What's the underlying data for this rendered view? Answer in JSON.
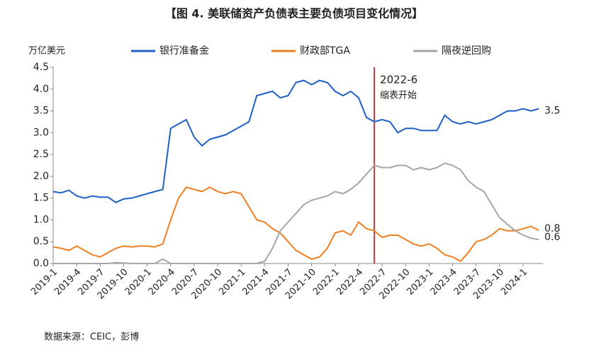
{
  "chart_data": {
    "type": "line",
    "title": "【图 4. 美联储资产负债表主要负债项目变化情况】",
    "y_label": "万亿美元",
    "source": "数据来源：CEIC，彭博",
    "categories": [
      "2019-1",
      null,
      null,
      "2019-4",
      null,
      null,
      "2019-7",
      null,
      null,
      "2019-10",
      null,
      null,
      "2020-1",
      null,
      null,
      "2020-4",
      null,
      null,
      "2020-7",
      null,
      null,
      "2020-10",
      null,
      null,
      "2021-1",
      null,
      null,
      "2021-4",
      null,
      null,
      "2021-7",
      null,
      null,
      "2021-10",
      null,
      null,
      "2022-1",
      null,
      null,
      "2022-4",
      null,
      null,
      "2022-7",
      null,
      null,
      "2022-10",
      null,
      null,
      "2023-1",
      null,
      null,
      "2023-4",
      null,
      null,
      "2023-7",
      null,
      null,
      "2023-10",
      null,
      null,
      "2024-1",
      null,
      null
    ],
    "ylim": [
      0,
      4.5
    ],
    "yticks": [
      {
        "value": 0,
        "label": "0.0"
      },
      0.5,
      {
        "value": 1,
        "label": "1.0"
      },
      1.5,
      {
        "value": 2,
        "label": "2.0"
      },
      2.5,
      {
        "value": 3,
        "label": "3.0"
      },
      3.5,
      {
        "value": 4,
        "label": "4.0"
      },
      4.5
    ],
    "series": [
      {
        "name": "银行准备金",
        "color": "#1f5fc8",
        "end_label": 3.5,
        "values": [
          1.65,
          1.62,
          1.68,
          1.55,
          1.5,
          1.55,
          1.52,
          1.52,
          1.4,
          1.48,
          1.5,
          1.55,
          1.6,
          1.65,
          1.7,
          3.1,
          3.2,
          3.3,
          2.9,
          2.7,
          2.85,
          2.9,
          2.95,
          3.05,
          3.15,
          3.25,
          3.85,
          3.9,
          3.95,
          3.8,
          3.85,
          4.15,
          4.2,
          4.1,
          4.2,
          4.15,
          3.95,
          3.85,
          3.95,
          3.8,
          3.35,
          3.25,
          3.3,
          3.25,
          3.0,
          3.1,
          3.1,
          3.05,
          3.05,
          3.05,
          3.4,
          3.25,
          3.2,
          3.25,
          3.2,
          3.25,
          3.3,
          3.4,
          3.5,
          3.5,
          3.55,
          3.5,
          3.55
        ]
      },
      {
        "name": "财政部TGA",
        "color": "#f07f21",
        "end_label": 0.8,
        "values": [
          0.38,
          0.35,
          0.3,
          0.4,
          0.3,
          0.2,
          0.15,
          0.25,
          0.35,
          0.4,
          0.38,
          0.4,
          0.4,
          0.38,
          0.45,
          1.0,
          1.5,
          1.75,
          1.7,
          1.65,
          1.75,
          1.65,
          1.6,
          1.65,
          1.6,
          1.3,
          1.0,
          0.95,
          0.8,
          0.7,
          0.5,
          0.3,
          0.2,
          0.1,
          0.15,
          0.35,
          0.7,
          0.75,
          0.65,
          0.95,
          0.8,
          0.75,
          0.6,
          0.65,
          0.65,
          0.55,
          0.45,
          0.4,
          0.45,
          0.35,
          0.2,
          0.15,
          0.05,
          0.25,
          0.5,
          0.55,
          0.65,
          0.8,
          0.75,
          0.75,
          0.8,
          0.85,
          0.76
        ]
      },
      {
        "name": "隔夜逆回购",
        "color": "#a6a6a6",
        "end_label": 0.6,
        "values": [
          0,
          0,
          0,
          0,
          0,
          0,
          0,
          0,
          0.02,
          0.01,
          0,
          0,
          0,
          0,
          0.1,
          0,
          0,
          0,
          0,
          0,
          0,
          0,
          0,
          0,
          0,
          0,
          0,
          0.05,
          0.35,
          0.75,
          0.95,
          1.15,
          1.35,
          1.45,
          1.5,
          1.55,
          1.65,
          1.6,
          1.7,
          1.85,
          2.05,
          2.25,
          2.2,
          2.2,
          2.25,
          2.25,
          2.15,
          2.2,
          2.15,
          2.2,
          2.3,
          2.25,
          2.15,
          1.9,
          1.75,
          1.65,
          1.35,
          1.05,
          0.9,
          0.75,
          0.65,
          0.58,
          0.55
        ]
      }
    ],
    "annotation": {
      "label": "2022-6",
      "note": "缩表开始",
      "color": "#c00000"
    }
  }
}
